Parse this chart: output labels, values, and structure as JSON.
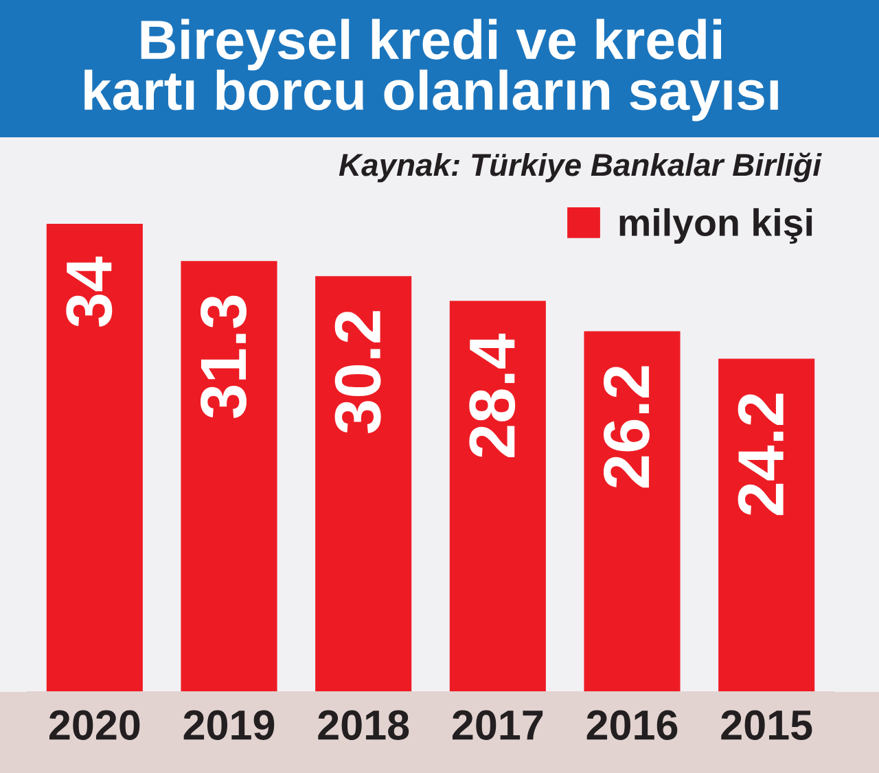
{
  "chart_data": {
    "type": "bar",
    "title": "Bireysel kredi ve kredi\nkartı borcu olanların sayısı",
    "annotations": [
      "Kaynak: Türkiye Bankalar Birliği"
    ],
    "categories": [
      "2020",
      "2019",
      "2018",
      "2017",
      "2016",
      "2015"
    ],
    "series": [
      {
        "name": "milyon kişi",
        "color": "#ed1c24",
        "values": [
          34,
          31.3,
          30.2,
          28.4,
          26.2,
          24.2
        ]
      }
    ],
    "data_labels": true,
    "legend": "top right",
    "tick_labels": "x"
  }
}
